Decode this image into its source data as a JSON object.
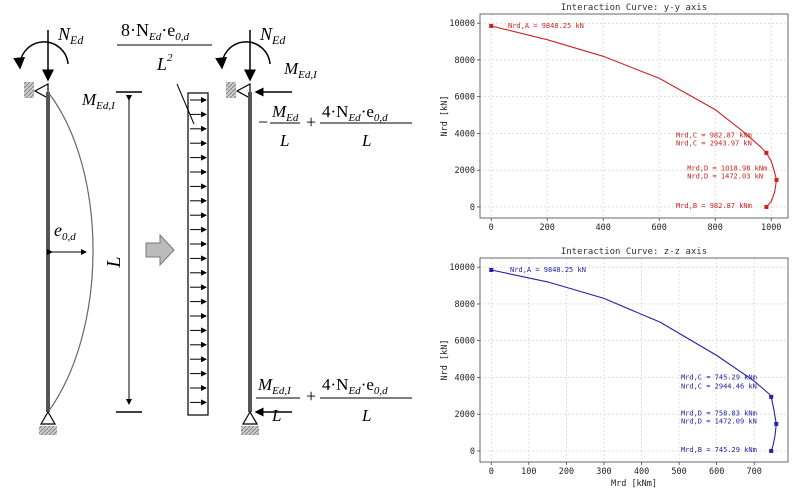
{
  "diagram": {
    "n_ed_top": "N",
    "n_ed_sub": "Ed",
    "m_ed_i": "M",
    "m_ed_i_sub": "Ed,I",
    "e0d": "e",
    "e0d_sub": "0,d",
    "length": "L",
    "q_num_prefix": "8·N",
    "q_num_sub": "Ed",
    "q_num_mid": "·e",
    "q_num_sub2": "0,d",
    "q_den": "L",
    "q_den_sup": "2",
    "top_force_sign": "−",
    "top_force_m": "M",
    "top_force_m_sub": "Ed",
    "top_force_den": "L",
    "plus": "+",
    "force_num_prefix": "4·N",
    "force_num_sub": "Ed",
    "force_num_mid": "·e",
    "force_num_sub2": "0,d",
    "force_den": "L",
    "bot_force_m": "M",
    "bot_force_m_sub": "Ed,I",
    "bot_force_den": "L"
  },
  "chart_data": [
    {
      "type": "line",
      "title": "Interaction Curve: y-y axis",
      "ylabel": "Nrd [kN]",
      "xlabel": "",
      "color": "#cc2222",
      "xlim": [
        -40,
        1060
      ],
      "ylim": [
        -600,
        10500
      ],
      "xticks": [
        0,
        200,
        400,
        600,
        800,
        1000
      ],
      "yticks": [
        0,
        2000,
        4000,
        6000,
        8000,
        10000
      ],
      "grid": true,
      "x": [
        0,
        200,
        400,
        600,
        800,
        900,
        960,
        982.87,
        1000,
        1010,
        1018.98,
        1012,
        1000,
        982.87
      ],
      "y": [
        9848.25,
        9100,
        8200,
        7000,
        5300,
        4100,
        3300,
        2943.97,
        2500,
        2000,
        1472.03,
        800,
        300,
        0
      ],
      "points": [
        {
          "x": 0,
          "y": 9848.25
        },
        {
          "x": 982.87,
          "y": 2943.97
        },
        {
          "x": 1018.98,
          "y": 1472.03
        },
        {
          "x": 982.87,
          "y": 0
        }
      ],
      "annotations": [
        {
          "text": "Nrd,A = 9848.25 kN",
          "x": 60,
          "y": 9848.25
        },
        {
          "text": "Mrd,C = 982.87 kNm",
          "x": 660,
          "y": 3900
        },
        {
          "text": "Nrd,C = 2943.97 kN",
          "x": 660,
          "y": 3450
        },
        {
          "text": "Mrd,D = 1018.98 kNm",
          "x": 700,
          "y": 2100
        },
        {
          "text": "Nrd,D = 1472.03 kN",
          "x": 700,
          "y": 1650
        },
        {
          "text": "Mrd,B = 982.87 kNm",
          "x": 660,
          "y": 50
        }
      ]
    },
    {
      "type": "line",
      "title": "Interaction Curve: z-z axis",
      "ylabel": "Nrd [kN]",
      "xlabel": "Mrd [kNm]",
      "color": "#2222aa",
      "xlim": [
        -30,
        790
      ],
      "ylim": [
        -600,
        10500
      ],
      "xticks": [
        0,
        100,
        200,
        300,
        400,
        500,
        600,
        700
      ],
      "yticks": [
        0,
        2000,
        4000,
        6000,
        8000,
        10000
      ],
      "grid": true,
      "x": [
        0,
        150,
        300,
        450,
        600,
        700,
        740,
        745.29,
        752,
        758.83,
        755,
        750,
        745.29
      ],
      "y": [
        9848.25,
        9200,
        8300,
        7000,
        5200,
        3800,
        3100,
        2944.46,
        2300,
        1472.09,
        800,
        300,
        0
      ],
      "points": [
        {
          "x": 0,
          "y": 9848.25
        },
        {
          "x": 745.29,
          "y": 2944.46
        },
        {
          "x": 758.83,
          "y": 1472.09
        },
        {
          "x": 745.29,
          "y": 0
        }
      ],
      "annotations": [
        {
          "text": "Nrd,A = 9848.25 kN",
          "x": 50,
          "y": 9848.25
        },
        {
          "text": "Mrd,C = 745.29 kNm",
          "x": 505,
          "y": 4000
        },
        {
          "text": "Nrd,C = 2944.46 kN",
          "x": 505,
          "y": 3500
        },
        {
          "text": "Mrd,D = 758.83 kNm",
          "x": 505,
          "y": 2050
        },
        {
          "text": "Nrd,D = 1472.09 kN",
          "x": 505,
          "y": 1600
        },
        {
          "text": "Mrd,B = 745.29 kNm",
          "x": 505,
          "y": 50
        }
      ]
    }
  ]
}
